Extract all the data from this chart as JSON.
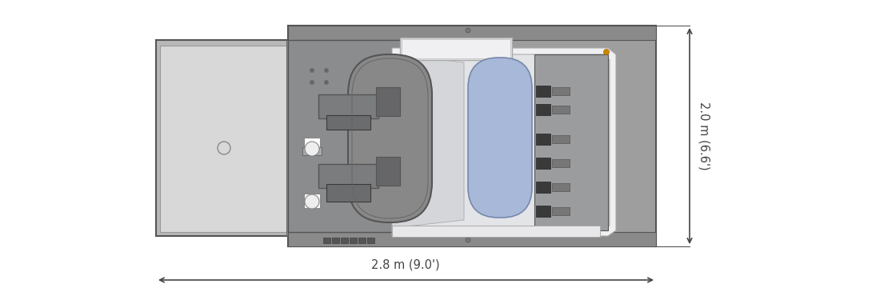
{
  "bg_color": "#ffffff",
  "fig_width": 10.9,
  "fig_height": 3.8,
  "c_gray_outer": "#8a8a8a",
  "c_gray_mid": "#9e9e9e",
  "c_gray_light": "#b8b8b8",
  "c_gray_lighter": "#cccccc",
  "c_gray_panel": "#d8d8d8",
  "c_gray_white": "#e8e8ea",
  "c_gray_inner_bg": "#e2e4e8",
  "c_dark": "#555555",
  "c_darker": "#3a3a3a",
  "c_pill_fill": "#888888",
  "c_pill_edge": "#555555",
  "c_blue_fill": "#a8b8d8",
  "c_blue_edge": "#7788aa",
  "c_left_panel": "#b0b2b4",
  "c_left_panel_edge": "#666666",
  "c_white_inner": "#f0f0f2",
  "c_trap_fill": "#d4d6da",
  "c_dim": "#444444",
  "text_horiz": "2.8 m (9.0')",
  "text_vert": "2.0 m (6.6')",
  "font_size": 10.5
}
